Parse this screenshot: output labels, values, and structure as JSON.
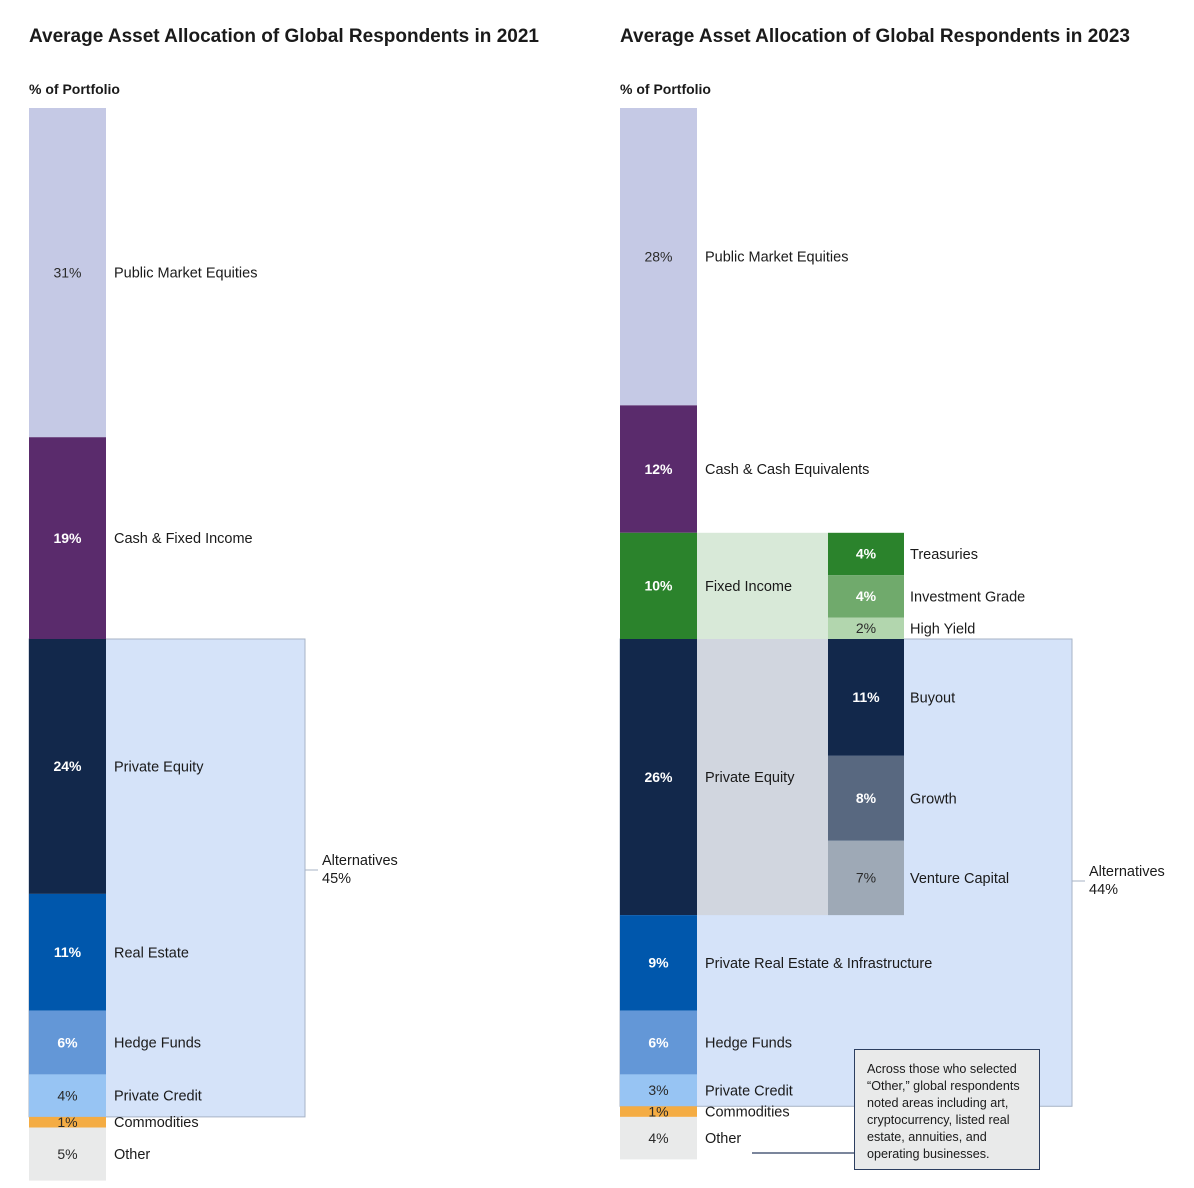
{
  "colors": {
    "public_equities": "#c5c9e5",
    "cash": "#5a2b6c",
    "fixed_income": "#2b832c",
    "fixed_income_bg": "#d8e9d8",
    "treasuries": "#2b832c",
    "investment_grade": "#70aa6c",
    "high_yield": "#b2d6ae",
    "private_equity": "#12284b",
    "pe_bg": "#d1d6df",
    "buyout": "#12284b",
    "growth": "#586880",
    "venture_capital": "#9ea9b6",
    "real_estate": "#0057ac",
    "hedge_funds": "#6397d7",
    "private_credit": "#97c4f3",
    "commodities": "#f4ac43",
    "other": "#e9eaea",
    "alternatives_bg": "#d5e3f9"
  },
  "chart_data": [
    {
      "type": "bar",
      "subtype": "stacked-100",
      "title": "Average Asset Allocation of Global Respondents in 2021",
      "ylabel": "% of Portfolio",
      "segments": [
        {
          "label": "Public Market Equities",
          "value": 31,
          "value_label": "31%",
          "color_key": "public_equities",
          "text": "dark"
        },
        {
          "label": "Cash & Fixed Income",
          "value": 19,
          "value_label": "19%",
          "color_key": "cash",
          "text": "light"
        },
        {
          "label": "Private Equity",
          "value": 24,
          "value_label": "24%",
          "color_key": "private_equity",
          "text": "light"
        },
        {
          "label": "Real Estate",
          "value": 11,
          "value_label": "11%",
          "color_key": "real_estate",
          "text": "light"
        },
        {
          "label": "Hedge Funds",
          "value": 6,
          "value_label": "6%",
          "color_key": "hedge_funds",
          "text": "light"
        },
        {
          "label": "Private Credit",
          "value": 4,
          "value_label": "4%",
          "color_key": "private_credit",
          "text": "dark"
        },
        {
          "label": "Commodities",
          "value": 1,
          "value_label": "1%",
          "color_key": "commodities",
          "text": "dark"
        },
        {
          "label": "Other",
          "value": 5,
          "value_label": "5%",
          "color_key": "other",
          "text": "dark"
        }
      ],
      "groups": [
        {
          "label": "Alternatives",
          "value": 45,
          "value_label": "45%",
          "members": [
            "Private Equity",
            "Real Estate",
            "Hedge Funds",
            "Private Credit"
          ]
        }
      ]
    },
    {
      "type": "bar",
      "subtype": "stacked-100",
      "title": "Average Asset Allocation of Global Respondents in 2023",
      "ylabel": "% of Portfolio",
      "segments": [
        {
          "label": "Public Market Equities",
          "value": 28,
          "value_label": "28%",
          "color_key": "public_equities",
          "text": "dark"
        },
        {
          "label": "Cash & Cash Equivalents",
          "value": 12,
          "value_label": "12%",
          "color_key": "cash",
          "text": "light"
        },
        {
          "label": "Fixed Income",
          "value": 10,
          "value_label": "10%",
          "color_key": "fixed_income",
          "text": "light",
          "breakdown": [
            {
              "label": "Treasuries",
              "value": 4,
              "value_label": "4%",
              "color_key": "treasuries",
              "text": "light"
            },
            {
              "label": "Investment Grade",
              "value": 4,
              "value_label": "4%",
              "color_key": "investment_grade",
              "text": "light"
            },
            {
              "label": "High Yield",
              "value": 2,
              "value_label": "2%",
              "color_key": "high_yield",
              "text": "dark"
            }
          ]
        },
        {
          "label": "Private Equity",
          "value": 26,
          "value_label": "26%",
          "color_key": "private_equity",
          "text": "light",
          "breakdown": [
            {
              "label": "Buyout",
              "value": 11,
              "value_label": "11%",
              "color_key": "buyout",
              "text": "light"
            },
            {
              "label": "Growth",
              "value": 8,
              "value_label": "8%",
              "color_key": "growth",
              "text": "light"
            },
            {
              "label": "Venture Capital",
              "value": 7,
              "value_label": "7%",
              "color_key": "venture_capital",
              "text": "dark"
            }
          ]
        },
        {
          "label": "Private Real Estate & Infrastructure",
          "value": 9,
          "value_label": "9%",
          "color_key": "real_estate",
          "text": "light"
        },
        {
          "label": "Hedge Funds",
          "value": 6,
          "value_label": "6%",
          "color_key": "hedge_funds",
          "text": "light"
        },
        {
          "label": "Private Credit",
          "value": 3,
          "value_label": "3%",
          "color_key": "private_credit",
          "text": "dark"
        },
        {
          "label": "Commodities",
          "value": 1,
          "value_label": "1%",
          "color_key": "commodities",
          "text": "dark"
        },
        {
          "label": "Other",
          "value": 4,
          "value_label": "4%",
          "color_key": "other",
          "text": "dark"
        }
      ],
      "groups": [
        {
          "label": "Alternatives",
          "value": 44,
          "value_label": "44%",
          "members": [
            "Private Equity",
            "Private Real Estate & Infrastructure",
            "Hedge Funds",
            "Private Credit"
          ]
        }
      ],
      "annotation": {
        "target": "Other",
        "text": "Across those who selected “Other,” global respondents noted areas including art, cryptocurrency, listed real estate, annuities, and operating businesses."
      }
    }
  ]
}
